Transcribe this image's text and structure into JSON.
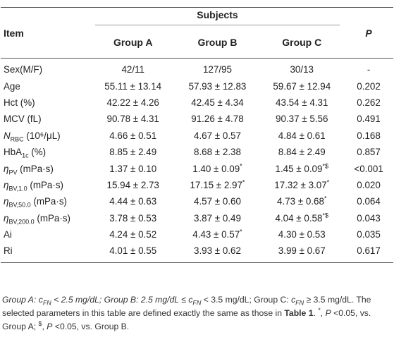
{
  "header": {
    "item_label": "Item",
    "subjects_label": "Subjects",
    "p_label": "P",
    "groups": [
      "Group A",
      "Group B",
      "Group C"
    ]
  },
  "rows": [
    {
      "item": "Sex(M/F)",
      "a": "42/11",
      "b": "127/95",
      "c": "30/13",
      "p": "-"
    },
    {
      "item": "Age",
      "a": "55.11 ± 13.14",
      "b": "57.93 ± 12.83",
      "c": "59.67 ± 12.94",
      "p": "0.202"
    },
    {
      "item": "Hct (%)",
      "a": "42.22 ± 4.26",
      "b": "42.45 ± 4.34",
      "c": "43.54 ± 4.31",
      "p": "0.262"
    },
    {
      "item": "MCV (fL)",
      "a": "90.78 ± 4.31",
      "b": "91.26 ± 4.78",
      "c": "90.37 ± 5.56",
      "p": "0.491"
    },
    {
      "item_main": "N",
      "item_sub": "RBC",
      "item_rest": " (10⁶/μL)",
      "a": "4.66 ± 0.51",
      "b": "4.67 ± 0.57",
      "c": "4.84 ± 0.61",
      "p": "0.168"
    },
    {
      "item_main": "HbA",
      "item_sub": "1c",
      "item_rest": " (%)",
      "a": "8.85 ± 2.49",
      "b": "8.68 ± 2.38",
      "c": "8.84 ± 2.49",
      "p": "0.857"
    },
    {
      "item_main": "η",
      "item_sub": "PV",
      "item_rest": " (mPa·s)",
      "a": "1.37 ± 0.10",
      "b": "1.40 ± 0.09",
      "b_sup": "*",
      "c": "1.45 ± 0.09",
      "c_sup": "*$",
      "p": "<0.001"
    },
    {
      "item_main": "η",
      "item_sub": "BV,1.0",
      "item_rest": " (mPa·s)",
      "a": "15.94 ± 2.73",
      "b": "17.15 ± 2.97",
      "b_sup": "*",
      "c": "17.32 ± 3.07",
      "c_sup": "*",
      "p": "0.020"
    },
    {
      "item_main": "η",
      "item_sub": "BV,50.0",
      "item_rest": " (mPa·s)",
      "a": "4.44 ± 0.63",
      "b": "4.57 ± 0.60",
      "c": "4.73 ± 0.68",
      "c_sup": "*",
      "p": "0.064"
    },
    {
      "item_main": "η",
      "item_sub": "BV,200.0",
      "item_rest": " (mPa·s)",
      "a": "3.78 ± 0.53",
      "b": "3.87 ± 0.49",
      "c": "4.04 ± 0.58",
      "c_sup": "*$",
      "p": "0.043"
    },
    {
      "item": "Ai",
      "a": "4.24 ± 0.52",
      "b": "4.43 ± 0.57",
      "b_sup": "*",
      "c": "4.30 ± 0.53",
      "p": "0.035"
    },
    {
      "item": "Ri",
      "a": "4.01 ± 0.55",
      "b": "3.93 ± 0.62",
      "c": "3.99 ± 0.67",
      "p": "0.617"
    }
  ],
  "footnote": {
    "part1": "Group A: c",
    "sub1": "FN",
    "part2": " < 2.5 mg/dL; Group B: 2.5 mg/dL ≤ ",
    "c2": "c",
    "sub2": "FN",
    "part3": " < 3.5 mg/dL; Group C: ",
    "c3": "c",
    "sub3": "FN",
    "part4": " ≥ 3.5 mg/dL. The selected parameters in this table are defined exactly the same as those in ",
    "table_ref": "Table 1",
    "part5": ". ",
    "star": "*",
    "part6": ", ",
    "p1": "P",
    "part7": " <0.05, vs. Group A; ",
    "dollar": "$",
    "part8": ", ",
    "p2": "P",
    "part9": " <0.05, vs. Group B."
  }
}
